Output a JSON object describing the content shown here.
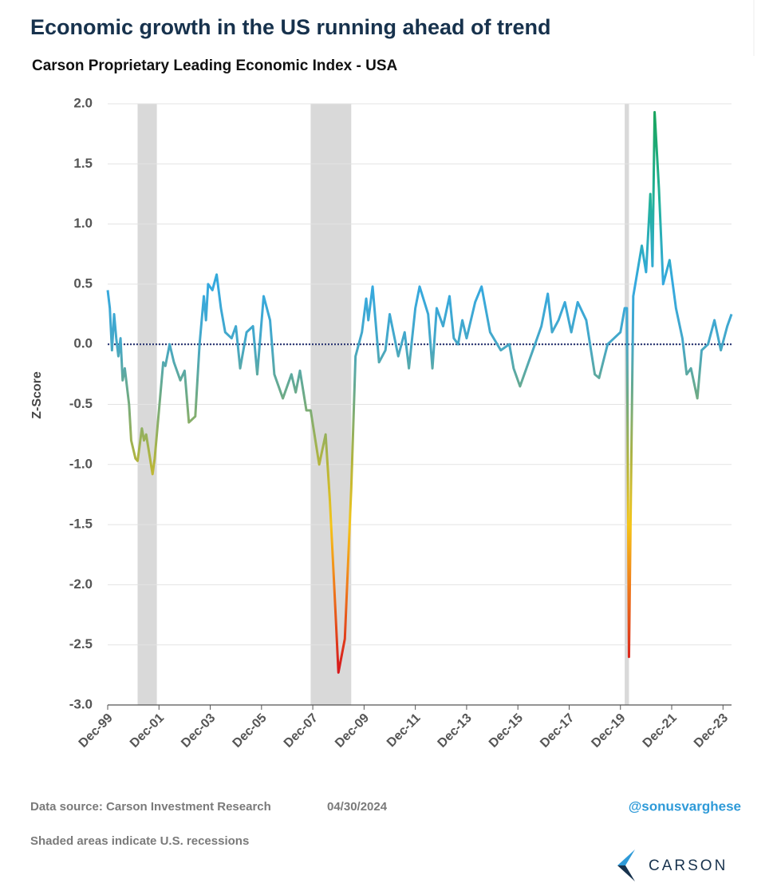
{
  "chart_data": {
    "type": "line",
    "title": "Economic growth in the US running ahead of trend",
    "subtitle": "Carson Proprietary Leading Economic Index - USA",
    "y_label": "Z-Score",
    "source": "Data source: Carson Investment Research",
    "date": "04/30/2024",
    "handle": "@sonusvarghese",
    "note": "Shaded areas indicate U.S. recessions",
    "brand": "CARSON",
    "xlim": [
      "Dec-99",
      "Apr-24"
    ],
    "xticks": [
      "Dec-99",
      "Dec-01",
      "Dec-03",
      "Dec-05",
      "Dec-07",
      "Dec-09",
      "Dec-11",
      "Dec-13",
      "Dec-15",
      "Dec-17",
      "Dec-19",
      "Dec-21",
      "Dec-23"
    ],
    "ylim": [
      -3,
      2
    ],
    "yticks": [
      {
        "value": 2,
        "label": "2.0"
      },
      1.5,
      {
        "value": 1,
        "label": "1.0"
      },
      0.5,
      {
        "value": 0,
        "label": "0.0"
      },
      -0.5,
      {
        "value": -1,
        "label": "-1.0"
      },
      -1.5,
      {
        "value": -2,
        "label": "-2.0"
      },
      -2.5,
      {
        "value": -3,
        "label": "-3.0"
      }
    ],
    "grid": true,
    "hline": 0,
    "recessions": [
      {
        "start": "Feb-01",
        "end": "Nov-01"
      },
      {
        "start": "Nov-07",
        "end": "Jun-09"
      },
      {
        "start": "Feb-20",
        "end": "Apr-20"
      }
    ],
    "recession_color": "#d9d9d9",
    "color_scale": [
      {
        "value": -2.7,
        "color": "#d7191c"
      },
      {
        "value": -2.0,
        "color": "#f07d1a"
      },
      {
        "value": -1.5,
        "color": "#f5c518"
      },
      {
        "value": -1.0,
        "color": "#b5b53a"
      },
      {
        "value": -0.4,
        "color": "#6aaa8a"
      },
      {
        "value": 0.0,
        "color": "#45a8c8"
      },
      {
        "value": 0.5,
        "color": "#35a9e0"
      },
      {
        "value": 1.2,
        "color": "#22b29a"
      },
      {
        "value": 1.9,
        "color": "#1aa560"
      }
    ],
    "series": [
      {
        "name": "Z-Score",
        "x": [
          "Dec-99",
          "Jan-00",
          "Feb-00",
          "Mar-00",
          "Apr-00",
          "May-00",
          "Jun-00",
          "Jul-00",
          "Aug-00",
          "Oct-00",
          "Nov-00",
          "Jan-01",
          "Feb-01",
          "Apr-01",
          "May-01",
          "Jun-01",
          "Sep-01",
          "Oct-01",
          "Dec-01",
          "Feb-02",
          "Mar-02",
          "May-02",
          "Jul-02",
          "Oct-02",
          "Dec-02",
          "Feb-03",
          "May-03",
          "Jul-03",
          "Sep-03",
          "Oct-03",
          "Nov-03",
          "Jan-04",
          "Mar-04",
          "May-04",
          "Jul-04",
          "Oct-04",
          "Dec-04",
          "Feb-05",
          "May-05",
          "Aug-05",
          "Oct-05",
          "Jan-06",
          "Apr-06",
          "Jun-06",
          "Oct-06",
          "Dec-06",
          "Feb-07",
          "Apr-07",
          "Jun-07",
          "Sep-07",
          "Nov-07",
          "Mar-08",
          "Jun-08",
          "Aug-08",
          "Oct-08",
          "Dec-08",
          "Mar-09",
          "Jun-09",
          "Aug-09",
          "Nov-09",
          "Jan-10",
          "Feb-10",
          "Apr-10",
          "Jul-10",
          "Oct-10",
          "Dec-10",
          "Apr-11",
          "Jul-11",
          "Sep-11",
          "Dec-11",
          "Feb-12",
          "Jun-12",
          "Aug-12",
          "Oct-12",
          "Jan-13",
          "Apr-13",
          "Jun-13",
          "Aug-13",
          "Oct-13",
          "Dec-13",
          "Apr-14",
          "Jul-14",
          "Nov-14",
          "Apr-15",
          "Aug-15",
          "Oct-15",
          "Jan-16",
          "May-16",
          "Aug-16",
          "Nov-16",
          "Feb-17",
          "Apr-17",
          "Jul-17",
          "Oct-17",
          "Jan-18",
          "Apr-18",
          "Aug-18",
          "Dec-18",
          "Feb-19",
          "Jun-19",
          "Sep-19",
          "Dec-19",
          "Feb-20",
          "Mar-20",
          "Apr-20",
          "Jun-20",
          "Oct-20",
          "Dec-20",
          "Feb-21",
          "Mar-21",
          "Apr-21",
          "Jun-21",
          "Aug-21",
          "Nov-21",
          "Feb-22",
          "May-22",
          "Jul-22",
          "Sep-22",
          "Dec-22",
          "Feb-23",
          "May-23",
          "Aug-23",
          "Nov-23",
          "Feb-24",
          "Apr-24"
        ],
        "values": [
          0.45,
          0.3,
          -0.05,
          0.25,
          0.05,
          -0.1,
          0.05,
          -0.3,
          -0.2,
          -0.5,
          -0.8,
          -0.95,
          -0.97,
          -0.7,
          -0.8,
          -0.75,
          -1.08,
          -0.95,
          -0.55,
          -0.15,
          -0.18,
          0.0,
          -0.15,
          -0.3,
          -0.22,
          -0.65,
          -0.6,
          0.0,
          0.4,
          0.2,
          0.5,
          0.45,
          0.58,
          0.3,
          0.1,
          0.05,
          0.15,
          -0.2,
          0.1,
          0.15,
          -0.25,
          0.4,
          0.2,
          -0.25,
          -0.45,
          -0.35,
          -0.25,
          -0.4,
          -0.22,
          -0.55,
          -0.55,
          -1.0,
          -0.75,
          -1.3,
          -2.0,
          -2.73,
          -2.45,
          -1.2,
          -0.1,
          0.1,
          0.38,
          0.2,
          0.48,
          -0.15,
          -0.05,
          0.25,
          -0.1,
          0.1,
          -0.2,
          0.3,
          0.48,
          0.25,
          -0.2,
          0.3,
          0.15,
          0.4,
          0.05,
          0.0,
          0.2,
          0.05,
          0.35,
          0.48,
          0.1,
          -0.05,
          0.0,
          -0.2,
          -0.35,
          -0.15,
          0.0,
          0.15,
          0.42,
          0.1,
          0.2,
          0.35,
          0.1,
          0.35,
          0.2,
          -0.25,
          -0.28,
          0.0,
          0.05,
          0.1,
          0.3,
          0.3,
          -2.6,
          0.4,
          0.82,
          0.6,
          1.25,
          0.65,
          1.93,
          1.3,
          0.5,
          0.7,
          0.3,
          0.05,
          -0.25,
          -0.2,
          -0.45,
          -0.05,
          0.0,
          0.2,
          -0.05,
          0.15,
          0.25
        ]
      }
    ]
  }
}
